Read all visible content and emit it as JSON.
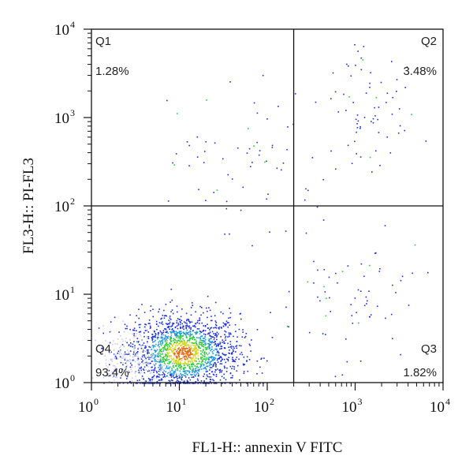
{
  "chart_data": {
    "type": "scatter",
    "subtype": "flow-cytometry-density-dot-plot",
    "title": "",
    "xlabel": "FL1-H:: annexin V FITC",
    "ylabel": "FL3-H:: PI-FL3",
    "x_scale": "log",
    "y_scale": "log",
    "xlim": [
      1,
      10000
    ],
    "ylim": [
      1,
      10000
    ],
    "x_ticks": [
      {
        "base": "10",
        "exp": "0",
        "value": 1
      },
      {
        "base": "10",
        "exp": "1",
        "value": 10
      },
      {
        "base": "10",
        "exp": "2",
        "value": 100
      },
      {
        "base": "10",
        "exp": "3",
        "value": 1000
      },
      {
        "base": "10",
        "exp": "4",
        "value": 10000
      }
    ],
    "y_ticks": [
      {
        "base": "10",
        "exp": "0",
        "value": 1
      },
      {
        "base": "10",
        "exp": "1",
        "value": 10
      },
      {
        "base": "10",
        "exp": "2",
        "value": 100
      },
      {
        "base": "10",
        "exp": "3",
        "value": 1000
      },
      {
        "base": "10",
        "exp": "4",
        "value": 10000
      }
    ],
    "gate": {
      "x": 200,
      "y": 100
    },
    "quadrants": [
      {
        "name": "Q1",
        "percent": "1.28%",
        "position": "top-left"
      },
      {
        "name": "Q2",
        "percent": "3.48%",
        "position": "top-right"
      },
      {
        "name": "Q3",
        "percent": "1.82%",
        "position": "bottom-right"
      },
      {
        "name": "Q4",
        "percent": "93.4%",
        "position": "bottom-left"
      }
    ],
    "populations": [
      {
        "quadrant": "Q4",
        "center_x": 11,
        "center_y": 2.2,
        "spread_log_x": 0.32,
        "spread_log_y": 0.22,
        "density": "high"
      },
      {
        "quadrant": "Q4",
        "center_x": 3,
        "center_y": 1.8,
        "spread_log_x": 0.25,
        "spread_log_y": 0.18,
        "density": "faint"
      },
      {
        "quadrant": "Q2",
        "center_x": 1500,
        "center_y": 900,
        "spread_log_x": 0.25,
        "spread_log_y": 0.35,
        "density": "sparse"
      },
      {
        "quadrant": "Q1",
        "center_x": 60,
        "center_y": 400,
        "spread_log_x": 0.5,
        "spread_log_y": 0.5,
        "density": "sparse"
      },
      {
        "quadrant": "Q3",
        "center_x": 800,
        "center_y": 10,
        "spread_log_x": 0.4,
        "spread_log_y": 0.4,
        "density": "sparse"
      }
    ],
    "density_colors": [
      "#c9cde6",
      "#1a2fd6",
      "#1f9ad6",
      "#2fc83a",
      "#d8d820",
      "#e06a10"
    ]
  }
}
